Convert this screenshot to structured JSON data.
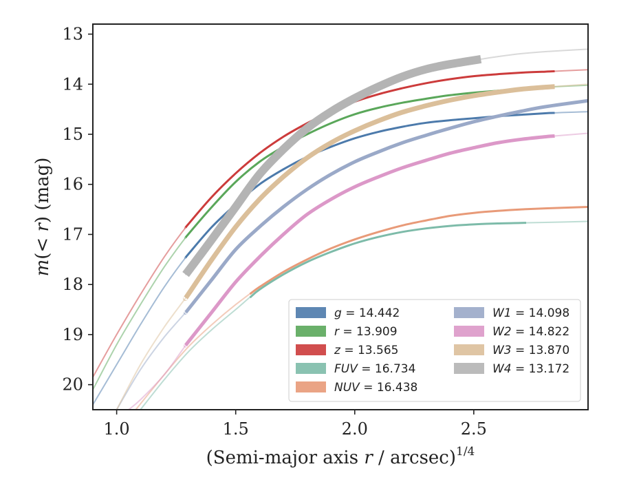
{
  "chart_data": {
    "type": "line",
    "xlabel": "(Semi-major axis r / arcsec)",
    "xlabel_sup": "1/4",
    "ylabel": "m(< r) (mag)",
    "xlim": [
      0.9,
      2.98
    ],
    "ylim": [
      20.5,
      12.8
    ],
    "y_inverted": true,
    "xticks": [
      1.0,
      1.5,
      2.0,
      2.5
    ],
    "xtick_labels": [
      "1.0",
      "1.5",
      "2.0",
      "2.5"
    ],
    "yticks": [
      13,
      14,
      15,
      16,
      17,
      18,
      19,
      20
    ],
    "ytick_labels": [
      "13",
      "14",
      "15",
      "16",
      "17",
      "18",
      "19",
      "20"
    ],
    "grid": false,
    "legend_position": "lower-right",
    "series": [
      {
        "name": "g = 14.442",
        "label_var": "g",
        "label_val": "14.442",
        "color": "#4c7aab",
        "x": [
          0.9,
          1.0,
          1.1,
          1.2,
          1.3,
          1.4,
          1.5,
          1.6,
          1.7,
          1.8,
          1.9,
          2.0,
          2.1,
          2.2,
          2.3,
          2.4,
          2.5,
          2.6,
          2.7,
          2.8,
          2.98
        ],
        "y": [
          20.4,
          19.6,
          18.8,
          18.05,
          17.4,
          16.85,
          16.4,
          16.0,
          15.7,
          15.45,
          15.25,
          15.08,
          14.95,
          14.85,
          14.77,
          14.72,
          14.68,
          14.64,
          14.61,
          14.58,
          14.55
        ],
        "x_thick": [
          1.29,
          2.84
        ]
      },
      {
        "name": "r = 13.909",
        "label_var": "r",
        "label_val": "13.909",
        "color": "#5aa75a",
        "x": [
          0.9,
          1.0,
          1.1,
          1.2,
          1.3,
          1.4,
          1.5,
          1.6,
          1.7,
          1.8,
          1.9,
          2.0,
          2.1,
          2.2,
          2.3,
          2.4,
          2.5,
          2.6,
          2.7,
          2.8,
          2.98
        ],
        "y": [
          20.1,
          19.2,
          18.4,
          17.65,
          17.0,
          16.45,
          15.95,
          15.55,
          15.25,
          15.0,
          14.78,
          14.6,
          14.47,
          14.37,
          14.29,
          14.22,
          14.17,
          14.13,
          14.09,
          14.06,
          14.02
        ],
        "x_thick": [
          1.29,
          2.84
        ]
      },
      {
        "name": "z = 13.565",
        "label_var": "z",
        "label_val": "13.565",
        "color": "#cc3b3b",
        "x": [
          0.9,
          1.0,
          1.1,
          1.2,
          1.3,
          1.4,
          1.5,
          1.6,
          1.7,
          1.8,
          1.9,
          2.0,
          2.1,
          2.2,
          2.3,
          2.4,
          2.5,
          2.6,
          2.7,
          2.8,
          2.98
        ],
        "y": [
          19.85,
          19.0,
          18.2,
          17.45,
          16.8,
          16.25,
          15.78,
          15.38,
          15.05,
          14.78,
          14.55,
          14.35,
          14.2,
          14.08,
          13.98,
          13.9,
          13.84,
          13.8,
          13.77,
          13.75,
          13.71
        ],
        "x_thick": [
          1.29,
          2.84
        ]
      },
      {
        "name": "FUV = 16.734",
        "label_var": "FUV",
        "label_val": "16.734",
        "color": "#7dbba9",
        "x": [
          1.1,
          1.2,
          1.3,
          1.4,
          1.5,
          1.6,
          1.7,
          1.8,
          1.9,
          2.0,
          2.1,
          2.2,
          2.3,
          2.4,
          2.5,
          2.6,
          2.7,
          2.8,
          2.98
        ],
        "y": [
          20.5,
          19.9,
          19.35,
          18.9,
          18.5,
          18.1,
          17.8,
          17.55,
          17.35,
          17.18,
          17.05,
          16.95,
          16.88,
          16.83,
          16.8,
          16.78,
          16.77,
          16.76,
          16.74
        ],
        "x_thick": [
          1.56,
          2.72
        ]
      },
      {
        "name": "NUV = 16.438",
        "label_var": "NUV",
        "label_val": "16.438",
        "color": "#e89a78",
        "x": [
          1.08,
          1.2,
          1.3,
          1.4,
          1.5,
          1.6,
          1.7,
          1.8,
          1.9,
          2.0,
          2.1,
          2.2,
          2.3,
          2.4,
          2.5,
          2.6,
          2.7,
          2.8,
          2.98
        ],
        "y": [
          20.5,
          19.8,
          19.25,
          18.8,
          18.4,
          18.05,
          17.75,
          17.5,
          17.28,
          17.1,
          16.95,
          16.82,
          16.72,
          16.63,
          16.57,
          16.53,
          16.5,
          16.48,
          16.45
        ],
        "x_thick": [
          1.56,
          2.98
        ]
      },
      {
        "name": "W1 = 14.098",
        "label_var": "W1",
        "label_val": "14.098",
        "color": "#9aa9c8",
        "x": [
          1.0,
          1.1,
          1.2,
          1.3,
          1.4,
          1.5,
          1.6,
          1.7,
          1.8,
          1.9,
          2.0,
          2.1,
          2.2,
          2.3,
          2.4,
          2.5,
          2.6,
          2.7,
          2.8,
          2.98
        ],
        "y": [
          20.5,
          19.7,
          19.05,
          18.5,
          17.9,
          17.3,
          16.85,
          16.45,
          16.1,
          15.8,
          15.55,
          15.35,
          15.17,
          15.02,
          14.88,
          14.75,
          14.64,
          14.54,
          14.45,
          14.33
        ],
        "x_thick": [
          1.29,
          2.98
        ]
      },
      {
        "name": "W2 = 14.822",
        "label_var": "W2",
        "label_val": "14.822",
        "color": "#dc98c8",
        "x": [
          1.05,
          1.1,
          1.2,
          1.3,
          1.4,
          1.5,
          1.6,
          1.7,
          1.8,
          1.9,
          2.0,
          2.1,
          2.2,
          2.3,
          2.4,
          2.5,
          2.6,
          2.7,
          2.8,
          2.98
        ],
        "y": [
          20.5,
          20.3,
          19.8,
          19.15,
          18.55,
          17.95,
          17.45,
          17.0,
          16.6,
          16.3,
          16.05,
          15.85,
          15.67,
          15.52,
          15.38,
          15.27,
          15.17,
          15.1,
          15.05,
          14.98
        ],
        "x_thick": [
          1.29,
          2.84
        ]
      },
      {
        "name": "W3 = 13.870",
        "label_var": "W3",
        "label_val": "13.870",
        "color": "#dbbf9a",
        "x": [
          1.0,
          1.1,
          1.2,
          1.3,
          1.4,
          1.5,
          1.6,
          1.7,
          1.8,
          1.9,
          2.0,
          2.1,
          2.2,
          2.3,
          2.4,
          2.5,
          2.6,
          2.7,
          2.8,
          2.98
        ],
        "y": [
          20.5,
          19.6,
          18.85,
          18.2,
          17.5,
          16.85,
          16.3,
          15.85,
          15.47,
          15.17,
          14.93,
          14.73,
          14.56,
          14.43,
          14.32,
          14.23,
          14.16,
          14.1,
          14.06,
          14.0
        ],
        "x_thick": [
          1.29,
          2.84
        ]
      },
      {
        "name": "W4 = 13.172",
        "label_var": "W4",
        "label_val": "13.172",
        "color": "#b4b4b4",
        "x": [
          1.29,
          1.4,
          1.5,
          1.6,
          1.7,
          1.8,
          1.9,
          2.0,
          2.1,
          2.2,
          2.3,
          2.4,
          2.53,
          2.6,
          2.7,
          2.8,
          2.98
        ],
        "y": [
          17.8,
          17.1,
          16.45,
          15.8,
          15.3,
          14.88,
          14.55,
          14.28,
          14.05,
          13.85,
          13.7,
          13.6,
          13.5,
          13.45,
          13.39,
          13.35,
          13.3
        ],
        "x_thick": [
          1.29,
          2.53
        ]
      }
    ]
  }
}
